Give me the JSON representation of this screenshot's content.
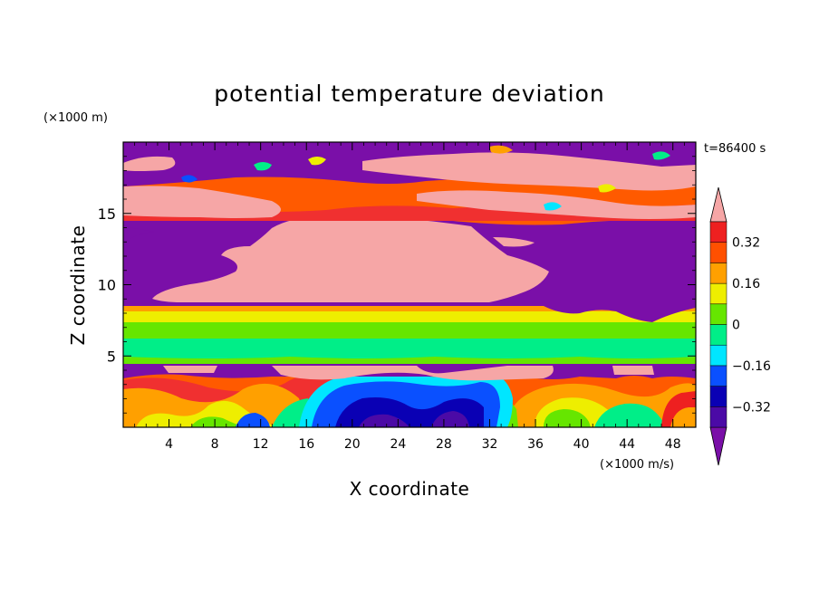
{
  "chart_data": {
    "type": "heatmap",
    "title": "potential temperature deviation",
    "xlabel": "X coordinate",
    "ylabel": "Z coordinate",
    "x_unit": "(×1000 m/s)",
    "y_unit": "(×1000 m)",
    "time_label": "t=86400 s",
    "xlim": [
      0,
      50
    ],
    "ylim": [
      0,
      20
    ],
    "x_ticks": [
      4,
      8,
      12,
      16,
      20,
      24,
      28,
      32,
      36,
      40,
      44,
      48
    ],
    "y_ticks": [
      5,
      10,
      15
    ],
    "colorbar": {
      "tick_labels": [
        "0.32",
        "0.16",
        "0",
        "-0.16",
        "-0.32"
      ],
      "tick_values": [
        0.32,
        0.16,
        0,
        -0.16,
        -0.32
      ],
      "levels": [
        -0.4,
        -0.32,
        -0.24,
        -0.16,
        -0.08,
        0,
        0.08,
        0.16,
        0.24,
        0.32,
        0.4
      ],
      "under_color": "#7a0fa8",
      "over_color": "#f6a6a6",
      "colors": [
        "#4b0aa6",
        "#0a00b4",
        "#0a50ff",
        "#00e6ff",
        "#00ee88",
        "#66e600",
        "#eeee00",
        "#ffa000",
        "#ff5000",
        "#ee2020"
      ]
    },
    "regions": [
      {
        "value": "under",
        "x": [
          0,
          50
        ],
        "z": [
          15.2,
          19.6
        ]
      },
      {
        "value": "over",
        "x": [
          0,
          50
        ],
        "z": [
          16.0,
          18.2
        ]
      },
      {
        "value": "under",
        "x": [
          0,
          50
        ],
        "z": [
          8.6,
          14.2
        ]
      },
      {
        "value": "over",
        "x": [
          9,
          37
        ],
        "z": [
          9.0,
          15.0
        ]
      },
      {
        "value": "0.34",
        "x": [
          0,
          50
        ],
        "z": [
          8.0,
          8.7
        ]
      },
      {
        "value": "0.2",
        "x": [
          0,
          50
        ],
        "z": [
          7.3,
          8.0
        ]
      },
      {
        "value": "0.04",
        "x": [
          0,
          50
        ],
        "z": [
          4.6,
          7.3
        ]
      },
      {
        "value": "over",
        "x": [
          0,
          50
        ],
        "z": [
          3.4,
          4.6
        ]
      },
      {
        "value": "-0.3",
        "x": [
          16,
          34
        ],
        "z": [
          0.2,
          3.8
        ]
      }
    ]
  }
}
